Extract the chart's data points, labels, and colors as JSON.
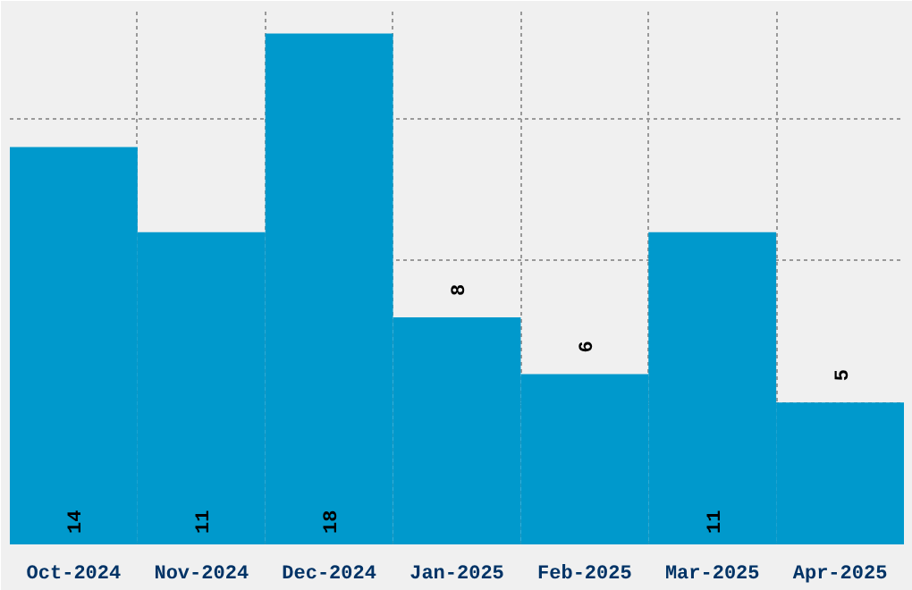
{
  "chart_data": {
    "type": "bar",
    "categories": [
      "Oct-2024",
      "Nov-2024",
      "Dec-2024",
      "Jan-2025",
      "Feb-2025",
      "Mar-2025",
      "Apr-2025"
    ],
    "values": [
      14,
      11,
      18,
      8,
      6,
      11,
      5
    ],
    "color": "#0099cc",
    "tick_labels": "x",
    "grid": true,
    "data_labels": true
  }
}
